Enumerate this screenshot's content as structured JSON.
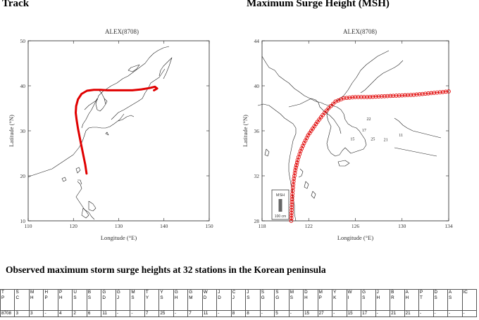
{
  "headings": {
    "track": "Track",
    "msh": "Maximum Surge Height (MSH)"
  },
  "chart_data": [
    {
      "type": "line",
      "title": "ALEX(8708)",
      "xlabel": "Longitude (°E)",
      "ylabel": "Latitude (°N)",
      "xlim": [
        110,
        150
      ],
      "ylim": [
        10,
        50
      ],
      "xticks": [
        110,
        120,
        130,
        140,
        150
      ],
      "yticks": [
        10,
        20,
        30,
        40,
        50
      ],
      "line_color": "#e00000",
      "series": [
        {
          "x": [
            122.9,
            122.6,
            122.2,
            121.8,
            121.4,
            121.0,
            120.7,
            120.5,
            120.6,
            121.0,
            121.8,
            123.0,
            124.5,
            126.0,
            127.5,
            129.0,
            131.0,
            133.0,
            135.0,
            136.8,
            138.0,
            138.5,
            137.8
          ],
          "y": [
            20.5,
            22.5,
            24.5,
            26.5,
            28.5,
            30.5,
            32.5,
            34.0,
            35.5,
            37.0,
            38.2,
            38.9,
            39.1,
            39.1,
            39.0,
            39.0,
            39.0,
            39.0,
            39.2,
            39.5,
            39.8,
            39.4,
            39.0
          ]
        }
      ]
    },
    {
      "type": "line",
      "title": "ALEX(8708)",
      "xlabel": "Longitude (°E)",
      "ylabel": "Latitude (°N)",
      "xlim": [
        118,
        134
      ],
      "ylim": [
        28,
        44
      ],
      "xticks": [
        118,
        122,
        126,
        130,
        134
      ],
      "yticks": [
        28,
        32,
        36,
        40,
        44
      ],
      "line_color": "#e00000",
      "legend_label": "MSH",
      "scale_label": "100 cm",
      "series": [
        {
          "x": [
            120.5,
            120.55,
            120.6,
            120.7,
            120.85,
            121.05,
            121.3,
            121.6,
            121.95,
            122.35,
            122.75,
            123.2,
            123.7,
            124.3,
            125.0,
            126.0,
            127.0,
            128.0,
            129.0,
            130.0,
            131.0,
            132.0,
            133.0,
            134.0
          ],
          "y": [
            28.0,
            29.2,
            30.4,
            31.5,
            32.5,
            33.4,
            34.2,
            34.9,
            35.6,
            36.2,
            36.8,
            37.4,
            38.0,
            38.6,
            38.9,
            39.0,
            39.0,
            39.05,
            39.1,
            39.15,
            39.2,
            39.3,
            39.4,
            39.5
          ]
        }
      ],
      "station_labels": [
        {
          "text": "22",
          "lon": 127.15,
          "lat": 36.95
        },
        {
          "text": "17",
          "lon": 126.75,
          "lat": 35.95
        },
        {
          "text": "15",
          "lon": 125.75,
          "lat": 35.15
        },
        {
          "text": "25",
          "lon": 127.5,
          "lat": 35.15
        },
        {
          "text": "21",
          "lon": 128.6,
          "lat": 35.1
        },
        {
          "text": "11",
          "lon": 129.9,
          "lat": 35.5
        }
      ]
    }
  ],
  "table": {
    "title": "Observed maximum storm surge heights at 32 stations in the Korean peninsula",
    "headers": [
      [
        "T",
        "P"
      ],
      [
        "S",
        "C"
      ],
      [
        "M",
        "H"
      ],
      [
        "H",
        "P"
      ],
      [
        "P",
        "H"
      ],
      [
        "U",
        "S"
      ],
      [
        "B",
        "S"
      ],
      [
        "G",
        "D"
      ],
      [
        "G",
        "J"
      ],
      [
        "M",
        "S"
      ],
      [
        "T",
        "Y"
      ],
      [
        "Y",
        "S"
      ],
      [
        "G",
        "H"
      ],
      [
        "G",
        "M"
      ],
      [
        "W",
        "D"
      ],
      [
        "J",
        "D"
      ],
      [
        "C",
        "J"
      ],
      [
        "J",
        "S"
      ],
      [
        "S",
        "G"
      ],
      [
        "S",
        "G"
      ],
      [
        "M",
        "S"
      ],
      [
        "D",
        "H"
      ],
      [
        "M",
        "P"
      ],
      [
        "Y",
        "K"
      ],
      [
        "W",
        "I"
      ],
      [
        "G",
        "S"
      ],
      [
        "J",
        "H"
      ],
      [
        "B",
        "R"
      ],
      [
        "A",
        "H"
      ],
      [
        "P",
        "T"
      ],
      [
        "D",
        "S"
      ],
      [
        "A",
        "S"
      ],
      [
        "IC",
        ""
      ]
    ],
    "values": [
      "8708",
      "3",
      "3",
      "-",
      "4",
      "2",
      "6",
      "11",
      "-",
      "-",
      "7",
      "25",
      "-",
      "7",
      "11",
      "-",
      "8",
      "8",
      "-",
      "5",
      "-",
      "15",
      "27",
      "-",
      "15",
      "17",
      "-",
      "21",
      "21",
      "-",
      "-",
      "-",
      "-"
    ]
  }
}
